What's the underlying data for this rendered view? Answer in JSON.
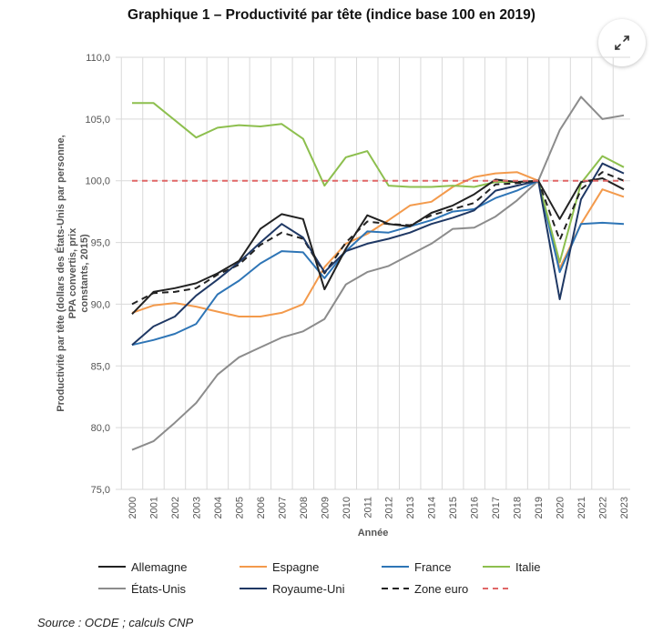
{
  "page": {
    "title": "Graphique 1 – Productivité par tête (indice base 100 en 2019)",
    "source": "Source : OCDE ; calculs CNP",
    "expand_icon": "expand-arrows-icon"
  },
  "chart_data": {
    "type": "line",
    "title": "Graphique 1 – Productivité par tête (indice base 100 en 2019)",
    "xlabel": "Année",
    "ylabel": "Productivité par tête (dollars des États-Unis par personne, PPA convertis, prix constants, 2015)",
    "ylim": [
      75,
      110
    ],
    "yticks": [
      "75,0",
      "80,0",
      "85,0",
      "90,0",
      "95,0",
      "100,0",
      "105,0",
      "110,0"
    ],
    "categories": [
      "2000",
      "2001",
      "2002",
      "2003",
      "2004",
      "2005",
      "2006",
      "2007",
      "2008",
      "2009",
      "2010",
      "2011",
      "2012",
      "2013",
      "2014",
      "2015",
      "2016",
      "2017",
      "2018",
      "2019",
      "2020",
      "2021",
      "2022",
      "2023"
    ],
    "grid": true,
    "legend_position": "bottom",
    "series": [
      {
        "name": "Allemagne",
        "color": "#222222",
        "dash": "solid",
        "values": [
          89.2,
          91.0,
          91.3,
          91.7,
          92.5,
          93.5,
          96.1,
          97.3,
          96.9,
          91.2,
          94.5,
          97.2,
          96.5,
          96.3,
          97.4,
          98.0,
          98.9,
          100.1,
          99.9,
          100.0,
          96.9,
          99.9,
          100.2,
          99.3
        ]
      },
      {
        "name": "Espagne",
        "color": "#F39A4C",
        "dash": "solid",
        "values": [
          89.3,
          89.9,
          90.1,
          89.8,
          89.4,
          89.0,
          89.0,
          89.3,
          90.0,
          93.0,
          94.9,
          95.7,
          96.8,
          98.0,
          98.3,
          99.5,
          100.3,
          100.6,
          100.7,
          100.0,
          92.9,
          96.5,
          99.3,
          98.7
        ]
      },
      {
        "name": "France",
        "color": "#2E75B6",
        "dash": "solid",
        "values": [
          86.7,
          87.1,
          87.6,
          88.4,
          90.8,
          91.9,
          93.3,
          94.3,
          94.2,
          92.1,
          94.3,
          95.9,
          95.8,
          96.3,
          96.8,
          97.5,
          97.7,
          98.6,
          99.2,
          100.0,
          92.6,
          96.5,
          96.6,
          96.5
        ]
      },
      {
        "name": "Italie",
        "color": "#8DBF4E",
        "dash": "solid",
        "values": [
          106.3,
          106.3,
          104.9,
          103.5,
          104.3,
          104.5,
          104.4,
          104.6,
          103.4,
          99.6,
          101.9,
          102.4,
          99.6,
          99.5,
          99.5,
          99.6,
          99.5,
          99.9,
          99.9,
          100.0,
          93.4,
          99.8,
          102.0,
          101.1
        ]
      },
      {
        "name": "États-Unis",
        "color": "#8C8C8C",
        "dash": "solid",
        "values": [
          78.2,
          78.9,
          80.4,
          82.0,
          84.3,
          85.7,
          86.5,
          87.3,
          87.8,
          88.8,
          91.6,
          92.6,
          93.1,
          94.0,
          94.9,
          96.1,
          96.2,
          97.1,
          98.4,
          100.0,
          104.1,
          106.8,
          105.0,
          105.3
        ]
      },
      {
        "name": "Royaume-Uni",
        "color": "#1F3864",
        "dash": "solid",
        "values": [
          86.7,
          88.2,
          89.0,
          90.7,
          92.0,
          93.4,
          95.0,
          96.5,
          95.4,
          92.6,
          94.3,
          94.9,
          95.3,
          95.8,
          96.5,
          97.0,
          97.6,
          99.2,
          99.6,
          100.0,
          90.4,
          98.5,
          101.4,
          100.6
        ]
      },
      {
        "name": "Zone euro",
        "color": "#222222",
        "dash": "dashed",
        "values": [
          90.0,
          90.9,
          91.0,
          91.3,
          92.4,
          93.2,
          94.8,
          95.8,
          95.3,
          92.5,
          95.0,
          96.7,
          96.5,
          96.4,
          97.2,
          97.7,
          98.2,
          99.7,
          99.8,
          100.0,
          95.2,
          99.3,
          100.7,
          100.0
        ]
      },
      {
        "name": "",
        "color": "#E06666",
        "dash": "dashed",
        "values": [
          100,
          100,
          100,
          100,
          100,
          100,
          100,
          100,
          100,
          100,
          100,
          100,
          100,
          100,
          100,
          100,
          100,
          100,
          100,
          100,
          100,
          100,
          100,
          100
        ]
      }
    ]
  }
}
